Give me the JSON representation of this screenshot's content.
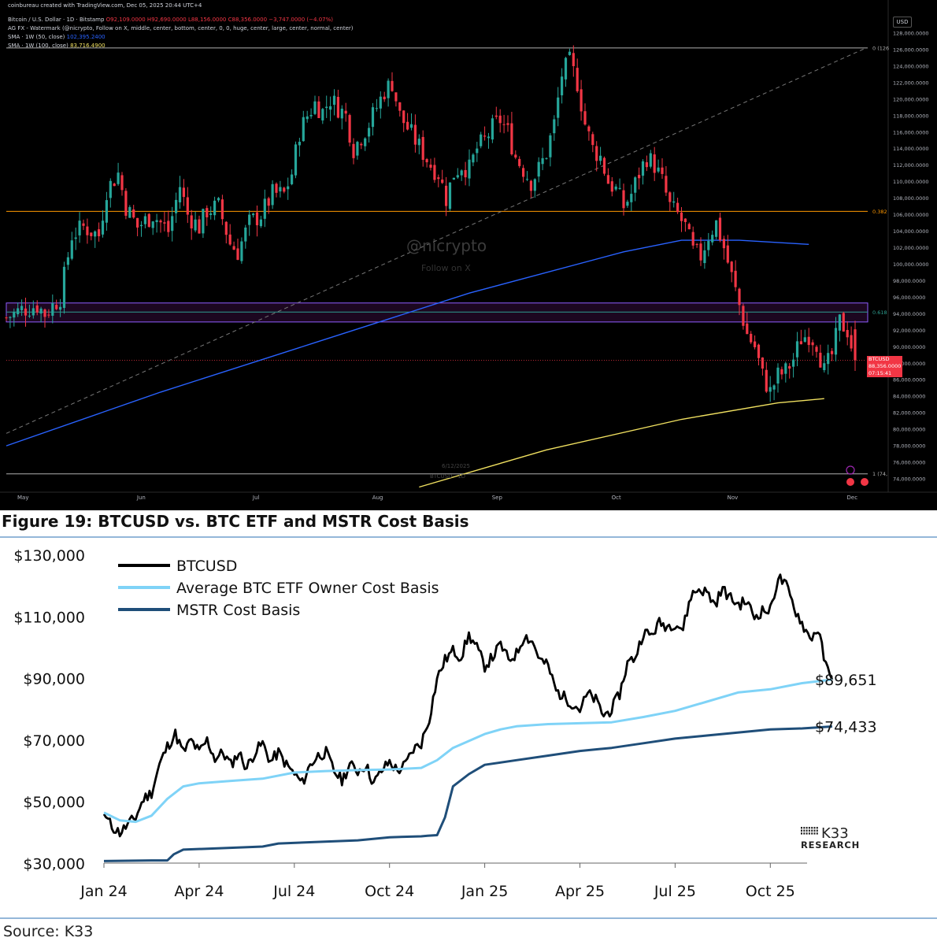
{
  "tv_chart": {
    "header_line1": "coinbureau created with TradingView.com, Dec 05, 2025 20:44 UTC+4",
    "symbol": "Bitcoin / U.S. Dollar · 1D · Bitstamp",
    "ohlc": "O92,109.0000 H92,690.0000 L88,156.0000 C88,356.0000 −3,747.0000 (−4.07%)",
    "indicator_watermark": "AG FX - Watermark (@nicrypto, Follow on X, middle, center, bottom, center, 0, 0, huge, center, large, center, normal, center)",
    "sma50_label": "SMA · 1W (50, close)",
    "sma50_value": "102,395.2400",
    "sma100_label": "SMA · 1W (100, close)",
    "sma100_value": "83,716.4900",
    "currency_button": "USD",
    "watermark_handle": "@nicrypto",
    "watermark_sub": "Follow on X",
    "ghost_date": "6/12/2025",
    "ghost_symbol": "BTCUSD · 1D",
    "price_label": "BTCUSD",
    "price_value": "88,356.0000",
    "countdown": "07:15:41",
    "colors": {
      "up": "#26a69a",
      "down": "#f23645",
      "sma50": "#2962ff",
      "sma100": "#f0e060",
      "fib": "#ff9800",
      "zone": "#9c27b0",
      "fib618": "#2e9e8f"
    }
  },
  "chart_data": [
    {
      "type": "candlestick",
      "title": "Bitcoin / U.S. Dollar · 1D · Bitstamp",
      "x_ticks": [
        "May",
        "Jun",
        "Jul",
        "Aug",
        "Sep",
        "Oct",
        "Nov",
        "Dec"
      ],
      "y_ticks": [
        "128,000.0000",
        "126,000.0000",
        "124,000.0000",
        "122,000.0000",
        "120,000.0000",
        "118,000.0000",
        "116,000.0000",
        "114,000.0000",
        "112,000.0000",
        "110,000.0000",
        "108,000.0000",
        "106,000.0000",
        "104,000.0000",
        "102,000.0000",
        "100,000.0000",
        "98,000.0000",
        "96,000.0000",
        "94,000.0000",
        "92,000.0000",
        "90,000.0000",
        "88,000.0000",
        "86,000.0000",
        "84,000.0000",
        "82,000.0000",
        "80,000.0000",
        "78,000.0000",
        "76,000.0000",
        "74,000.0000"
      ],
      "ylim": [
        73000,
        129000
      ],
      "close_path": [
        [
          0,
          93500
        ],
        [
          4,
          94500
        ],
        [
          8,
          95000
        ],
        [
          10,
          94000
        ],
        [
          14,
          96000
        ],
        [
          17,
          103500
        ],
        [
          20,
          104500
        ],
        [
          24,
          103500
        ],
        [
          26,
          109000
        ],
        [
          29,
          111000
        ],
        [
          31,
          107000
        ],
        [
          34,
          104500
        ],
        [
          38,
          106000
        ],
        [
          42,
          104000
        ],
        [
          45,
          109500
        ],
        [
          47,
          106000
        ],
        [
          50,
          104500
        ],
        [
          52,
          106500
        ],
        [
          55,
          107000
        ],
        [
          58,
          102500
        ],
        [
          60,
          101500
        ],
        [
          63,
          105000
        ],
        [
          66,
          106000
        ],
        [
          69,
          108500
        ],
        [
          72,
          108500
        ],
        [
          74,
          111000
        ],
        [
          76,
          116000
        ],
        [
          78,
          118000
        ],
        [
          80,
          119500
        ],
        [
          82,
          118500
        ],
        [
          84,
          120000
        ],
        [
          86,
          119000
        ],
        [
          88,
          118000
        ],
        [
          90,
          114000
        ],
        [
          92,
          115500
        ],
        [
          94,
          117000
        ],
        [
          96,
          119000
        ],
        [
          98,
          121000
        ],
        [
          100,
          122000
        ],
        [
          102,
          118000
        ],
        [
          104,
          116500
        ],
        [
          106,
          115000
        ],
        [
          108,
          113500
        ],
        [
          110,
          112000
        ],
        [
          112,
          111000
        ],
        [
          114,
          108000
        ],
        [
          116,
          111000
        ],
        [
          118,
          112000
        ],
        [
          120,
          111500
        ],
        [
          122,
          114000
        ],
        [
          124,
          115000
        ],
        [
          126,
          116500
        ],
        [
          128,
          117500
        ],
        [
          130,
          116000
        ],
        [
          132,
          113000
        ],
        [
          134,
          111500
        ],
        [
          136,
          110000
        ],
        [
          138,
          111500
        ],
        [
          140,
          113500
        ],
        [
          142,
          117000
        ],
        [
          144,
          123000
        ],
        [
          146,
          124500
        ],
        [
          148,
          122000
        ],
        [
          150,
          117000
        ],
        [
          152,
          114000
        ],
        [
          154,
          113000
        ],
        [
          156,
          110000
        ],
        [
          158,
          109000
        ],
        [
          160,
          107000
        ],
        [
          162,
          108500
        ],
        [
          164,
          111000
        ],
        [
          166,
          113000
        ],
        [
          168,
          112000
        ],
        [
          170,
          110000
        ],
        [
          172,
          107000
        ],
        [
          174,
          106000
        ],
        [
          176,
          104500
        ],
        [
          178,
          101500
        ],
        [
          180,
          101000
        ],
        [
          182,
          103500
        ],
        [
          184,
          105000
        ],
        [
          186,
          102000
        ],
        [
          188,
          98500
        ],
        [
          190,
          95000
        ],
        [
          192,
          91500
        ],
        [
          194,
          90000
        ],
        [
          196,
          86500
        ],
        [
          198,
          84500
        ],
        [
          200,
          86500
        ],
        [
          202,
          87000
        ],
        [
          204,
          88500
        ],
        [
          206,
          91000
        ],
        [
          208,
          91500
        ],
        [
          210,
          90500
        ],
        [
          212,
          87000
        ],
        [
          214,
          89000
        ],
        [
          216,
          93000
        ],
        [
          218,
          92000
        ],
        [
          220,
          88356
        ]
      ],
      "close_path_note": "",
      "sma50_path": [
        [
          0,
          78000
        ],
        [
          40,
          84500
        ],
        [
          80,
          90500
        ],
        [
          120,
          96500
        ],
        [
          160,
          101500
        ],
        [
          175,
          102900
        ],
        [
          190,
          102900
        ],
        [
          208,
          102400
        ]
      ],
      "sma100_path": [
        [
          107,
          73000
        ],
        [
          140,
          77500
        ],
        [
          175,
          81200
        ],
        [
          200,
          83200
        ],
        [
          212,
          83716
        ]
      ],
      "levels": [
        {
          "label": "0 (126",
          "value": 126200
        },
        {
          "label": "0.382",
          "value": 106400
        },
        {
          "label": "0.618",
          "value": 94200
        },
        {
          "label": "1 (74,",
          "value": 74600
        }
      ],
      "zone": [
        93000,
        95300
      ],
      "last_price": 88356
    },
    {
      "type": "line",
      "title": "Figure 19: BTCUSD vs. BTC ETF and MSTR Cost Basis",
      "x_ticks": [
        "Jan 24",
        "Apr 24",
        "Jul 24",
        "Oct 24",
        "Jan 25",
        "Apr 25",
        "Jul 25",
        "Oct 25"
      ],
      "y_ticks": [
        "$130,000",
        "$110,000",
        "$90,000",
        "$70,000",
        "$50,000",
        "$30,000"
      ],
      "ylim": [
        30000,
        130000
      ],
      "x_unit": "months since Jan 24",
      "series": [
        {
          "name": "BTCUSD",
          "color": "#000000",
          "points": [
            [
              0,
              46000
            ],
            [
              0.25,
              42000
            ],
            [
              0.5,
              40000
            ],
            [
              0.75,
              42500
            ],
            [
              1,
              45000
            ],
            [
              1.25,
              51000
            ],
            [
              1.5,
              53000
            ],
            [
              1.75,
              62000
            ],
            [
              2,
              68000
            ],
            [
              2.25,
              72000
            ],
            [
              2.5,
              66000
            ],
            [
              2.75,
              70000
            ],
            [
              3,
              66000
            ],
            [
              3.25,
              70000
            ],
            [
              3.5,
              64000
            ],
            [
              3.75,
              66000
            ],
            [
              4,
              62000
            ],
            [
              4.25,
              66000
            ],
            [
              4.5,
              61000
            ],
            [
              4.75,
              66000
            ],
            [
              5,
              69000
            ],
            [
              5.25,
              63000
            ],
            [
              5.5,
              66000
            ],
            [
              5.75,
              62000
            ],
            [
              6,
              59000
            ],
            [
              6.25,
              56000
            ],
            [
              6.5,
              62000
            ],
            [
              6.75,
              65000
            ],
            [
              7,
              66000
            ],
            [
              7.25,
              60000
            ],
            [
              7.5,
              57000
            ],
            [
              7.75,
              62000
            ],
            [
              8,
              60000
            ],
            [
              8.25,
              62000
            ],
            [
              8.5,
              56000
            ],
            [
              8.75,
              60000
            ],
            [
              9,
              63000
            ],
            [
              9.25,
              60000
            ],
            [
              9.5,
              62000
            ],
            [
              9.75,
              67000
            ],
            [
              10,
              69000
            ],
            [
              10.25,
              77000
            ],
            [
              10.5,
              90000
            ],
            [
              10.75,
              96000
            ],
            [
              11,
              99000
            ],
            [
              11.25,
              97000
            ],
            [
              11.5,
              104000
            ],
            [
              11.75,
              100000
            ],
            [
              12,
              94000
            ],
            [
              12.25,
              97000
            ],
            [
              12.5,
              101000
            ],
            [
              12.75,
              96000
            ],
            [
              13,
              98000
            ],
            [
              13.25,
              104000
            ],
            [
              13.5,
              102000
            ],
            [
              13.75,
              96000
            ],
            [
              14,
              94000
            ],
            [
              14.25,
              86000
            ],
            [
              14.5,
              84000
            ],
            [
              14.75,
              82000
            ],
            [
              15,
              80000
            ],
            [
              15.25,
              85000
            ],
            [
              15.5,
              83000
            ],
            [
              15.75,
              78000
            ],
            [
              16,
              80000
            ],
            [
              16.25,
              85000
            ],
            [
              16.5,
              95000
            ],
            [
              16.75,
              97000
            ],
            [
              17,
              105000
            ],
            [
              17.25,
              104000
            ],
            [
              17.5,
              108000
            ],
            [
              17.75,
              107000
            ],
            [
              18,
              108000
            ],
            [
              18.25,
              106000
            ],
            [
              18.5,
              117000
            ],
            [
              18.75,
              119000
            ],
            [
              19,
              118000
            ],
            [
              19.25,
              114000
            ],
            [
              19.5,
              119000
            ],
            [
              19.75,
              116000
            ],
            [
              20,
              114000
            ],
            [
              20.25,
              115000
            ],
            [
              20.5,
              110000
            ],
            [
              20.75,
              112000
            ],
            [
              21,
              112000
            ],
            [
              21.25,
              123000
            ],
            [
              21.5,
              120000
            ],
            [
              21.75,
              113000
            ],
            [
              22,
              108000
            ],
            [
              22.25,
              103000
            ],
            [
              22.5,
              106000
            ],
            [
              22.75,
              94000
            ],
            [
              22.95,
              89651
            ]
          ]
        },
        {
          "name": "Average BTC ETF Owner Cost Basis",
          "color": "#7fd3f7",
          "points": [
            [
              0,
              46500
            ],
            [
              0.5,
              44000
            ],
            [
              1,
              43500
            ],
            [
              1.5,
              45500
            ],
            [
              2,
              51000
            ],
            [
              2.5,
              55000
            ],
            [
              3,
              56000
            ],
            [
              4,
              56800
            ],
            [
              5,
              57500
            ],
            [
              6,
              59500
            ],
            [
              7,
              60000
            ],
            [
              8,
              60300
            ],
            [
              9,
              60500
            ],
            [
              10,
              61000
            ],
            [
              10.5,
              63500
            ],
            [
              11,
              67500
            ],
            [
              12,
              72000
            ],
            [
              12.5,
              73500
            ],
            [
              13,
              74500
            ],
            [
              14,
              75200
            ],
            [
              15,
              75500
            ],
            [
              16,
              75800
            ],
            [
              17,
              77500
            ],
            [
              18,
              79500
            ],
            [
              19,
              82500
            ],
            [
              20,
              85500
            ],
            [
              21,
              86500
            ],
            [
              22,
              88500
            ],
            [
              22.95,
              89651
            ]
          ]
        },
        {
          "name": "MSTR Cost Basis",
          "color": "#1f4e79",
          "points": [
            [
              0,
              30800
            ],
            [
              1.5,
              31000
            ],
            [
              2,
              31000
            ],
            [
              2.2,
              33000
            ],
            [
              2.5,
              34500
            ],
            [
              5,
              35500
            ],
            [
              5.5,
              36500
            ],
            [
              8,
              37500
            ],
            [
              9,
              38500
            ],
            [
              10,
              38800
            ],
            [
              10.2,
              39000
            ],
            [
              10.5,
              39200
            ],
            [
              10.75,
              45000
            ],
            [
              11,
              55000
            ],
            [
              11.5,
              59000
            ],
            [
              12,
              62000
            ],
            [
              13,
              63500
            ],
            [
              14,
              65000
            ],
            [
              15,
              66500
            ],
            [
              16,
              67500
            ],
            [
              17,
              69000
            ],
            [
              18,
              70500
            ],
            [
              19,
              71500
            ],
            [
              20,
              72500
            ],
            [
              21,
              73500
            ],
            [
              22,
              73800
            ],
            [
              22.95,
              74433
            ]
          ]
        }
      ],
      "end_labels": [
        "$89,651",
        "$74,433"
      ]
    }
  ],
  "figure_title": "Figure 19: BTCUSD vs. BTC ETF and MSTR Cost Basis",
  "k33_logo": {
    "line1": "K33",
    "line2": "RESEARCH"
  },
  "source": "Source: K33"
}
